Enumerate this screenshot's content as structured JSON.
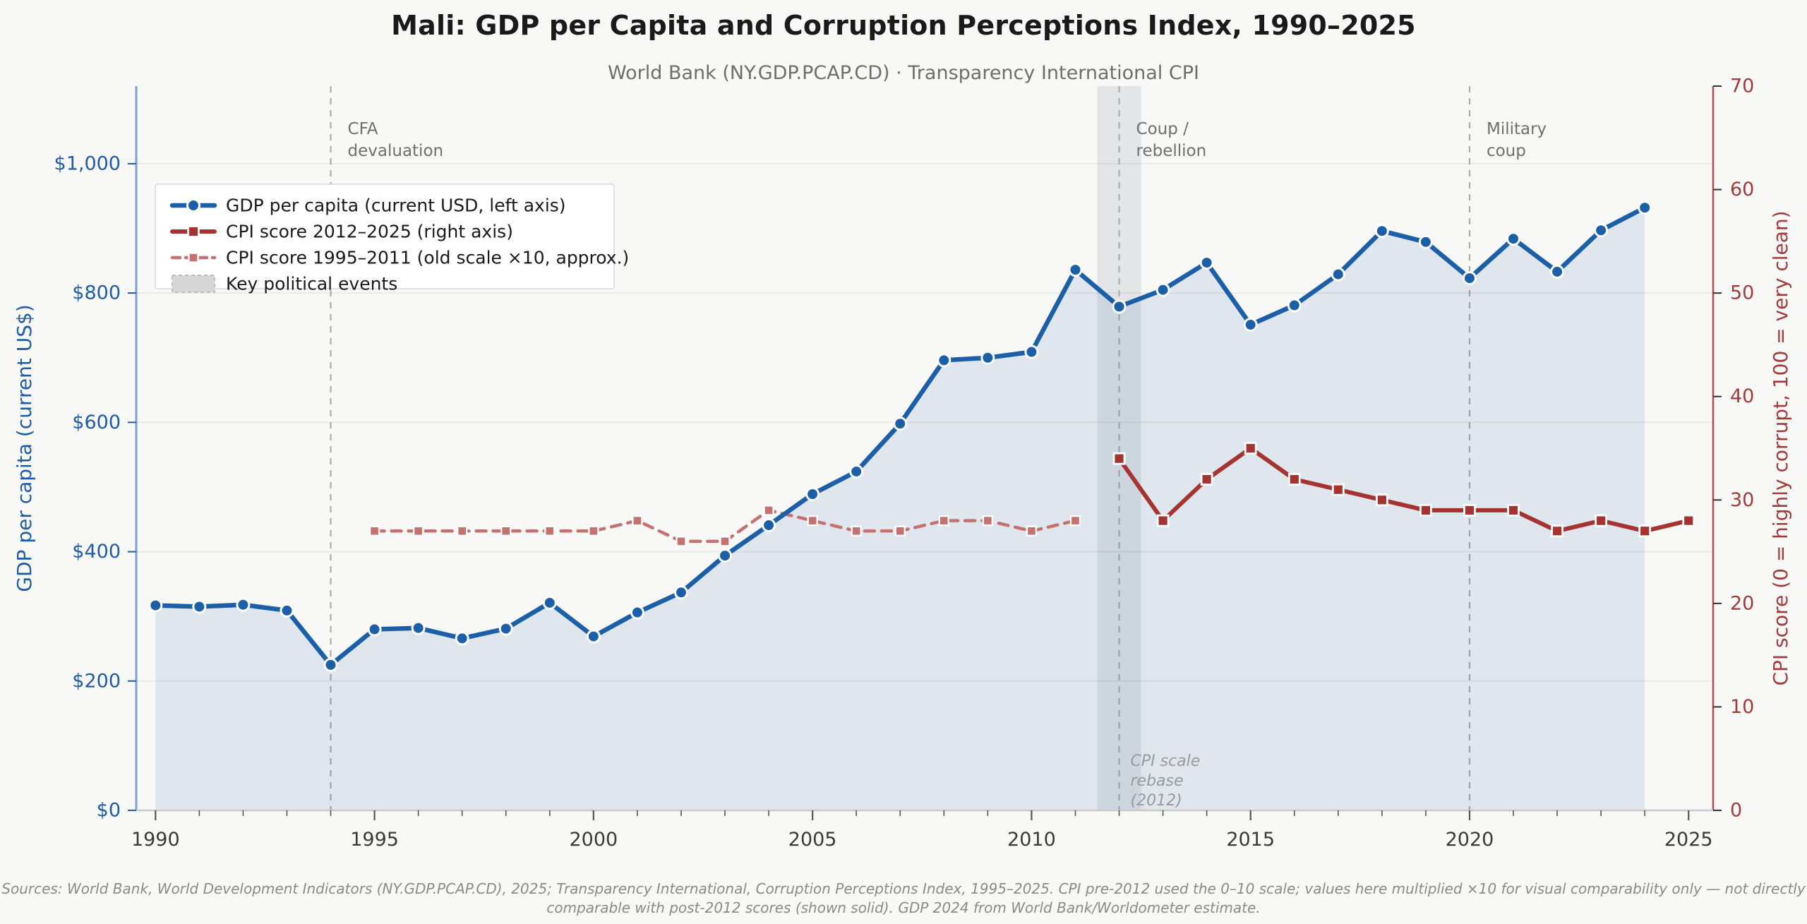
{
  "chart_data": {
    "type": "line",
    "title": "Mali: GDP per Capita and Corruption Perceptions Index, 1990–2025",
    "subtitle": "World Bank (NY.GDP.PCAP.CD) · Transparency International CPI",
    "footnote_lines": [
      "Sources: World Bank, World Development Indicators (NY.GDP.PCAP.CD), 2025; Transparency International, Corruption Perceptions Index, 1995–2025. CPI pre-2012 used the 0–10 scale; values here multiplied ×10 for visual comparability only — not directly",
      "comparable with post-2012 scores (shown solid). GDP 2024 from World Bank/Worldometer estimate."
    ],
    "x_axis": {
      "min": 1989.56,
      "max": 2025.56,
      "major_ticks": [
        1990,
        1995,
        2000,
        2005,
        2010,
        2015,
        2020,
        2025
      ],
      "minor_tick_step": 1
    },
    "left_axis": {
      "label": "GDP per capita (current US$)",
      "min": 0,
      "max": 1120,
      "tick_values": [
        0,
        200,
        400,
        600,
        800,
        1000
      ],
      "tick_labels": [
        "$0",
        "$200",
        "$400",
        "$600",
        "$800",
        "$1,000"
      ],
      "color": "#1f5ca8"
    },
    "right_axis": {
      "label": "CPI score (0 = highly corrupt, 100 = very clean)",
      "min": 0,
      "max": 70,
      "tick_values": [
        0,
        10,
        20,
        30,
        40,
        50,
        60,
        70
      ],
      "tick_labels": [
        "0",
        "10",
        "20",
        "30",
        "40",
        "50",
        "60",
        "70"
      ],
      "color": "#a33b3b"
    },
    "series": [
      {
        "id": "gdp",
        "name": "GDP per capita (current USD, left axis)",
        "axis": "left",
        "color": "#1b5fa8",
        "marker": "circle",
        "dash": null,
        "fill_to_zero": true,
        "x": [
          1990,
          1991,
          1992,
          1993,
          1994,
          1995,
          1996,
          1997,
          1998,
          1999,
          2000,
          2001,
          2002,
          2003,
          2004,
          2005,
          2006,
          2007,
          2008,
          2009,
          2010,
          2011,
          2012,
          2013,
          2014,
          2015,
          2016,
          2017,
          2018,
          2019,
          2020,
          2021,
          2022,
          2023,
          2024
        ],
        "values": [
          317,
          315,
          318,
          309,
          225,
          280,
          282,
          266,
          281,
          321,
          269,
          306,
          337,
          394,
          441,
          489,
          524,
          598,
          696,
          700,
          709,
          836,
          779,
          805,
          847,
          751,
          781,
          829,
          896,
          879,
          823,
          884,
          833,
          897,
          932
        ]
      },
      {
        "id": "cpi_new",
        "name": "CPI score 2012–2025 (right axis)",
        "axis": "right",
        "color": "#a53431",
        "marker": "square",
        "dash": null,
        "fill_to_zero": false,
        "x": [
          2012,
          2013,
          2014,
          2015,
          2016,
          2017,
          2018,
          2019,
          2020,
          2021,
          2022,
          2023,
          2024,
          2025
        ],
        "values": [
          34,
          28,
          32,
          35,
          32,
          31,
          30,
          29,
          29,
          29,
          27,
          28,
          27,
          28
        ]
      },
      {
        "id": "cpi_old",
        "name": "CPI score 1995–2011 (old scale ×10, approx.)",
        "axis": "right",
        "color": "#c5716f",
        "marker": "square",
        "dash": [
          14,
          10
        ],
        "fill_to_zero": false,
        "x": [
          1995,
          1996,
          1997,
          1998,
          1999,
          2000,
          2001,
          2002,
          2003,
          2004,
          2005,
          2006,
          2007,
          2008,
          2009,
          2010,
          2011
        ],
        "values": [
          27,
          27,
          27,
          27,
          27,
          27,
          28,
          26,
          26,
          29,
          28,
          27,
          27,
          28,
          28,
          27,
          28
        ]
      }
    ],
    "events": [
      {
        "year": 1994,
        "label": "CFA\ndevaluation",
        "band": null
      },
      {
        "year": 2012,
        "label": "Coup /\nrebellion",
        "band": [
          2011.5,
          2012.5
        ]
      },
      {
        "year": 2020,
        "label": "Military\ncoup",
        "band": null
      }
    ],
    "annotations": [
      {
        "text": "CPI scale\nrebase\n(2012)",
        "year": 2012,
        "dx": 16,
        "y": 1085,
        "line_height": 28,
        "style": "italic"
      }
    ],
    "legend": {
      "entries": [
        {
          "series": "gdp"
        },
        {
          "series": "cpi_new"
        },
        {
          "series": "cpi_old"
        },
        {
          "type": "patch",
          "label": "Key political events",
          "color": "#d6d6d6"
        }
      ]
    },
    "colors": {
      "background": "#f8f8f6",
      "grid": "#e7e7e3",
      "event_line": "#ababab",
      "event_band": "rgba(110,120,140,0.15)",
      "gdp_fill": "rgba(27,95,168,0.11)",
      "tick_label": "#3a3a3a",
      "annotation": "#6f6f6f",
      "left_spine": "#7aa3d4",
      "right_spine": "#b14c4c",
      "bottom_spine": "#c9c9c9",
      "legend_bg": "#ffffff",
      "legend_border": "#d9d9d9",
      "legend_text": "#1a1a1a"
    }
  }
}
